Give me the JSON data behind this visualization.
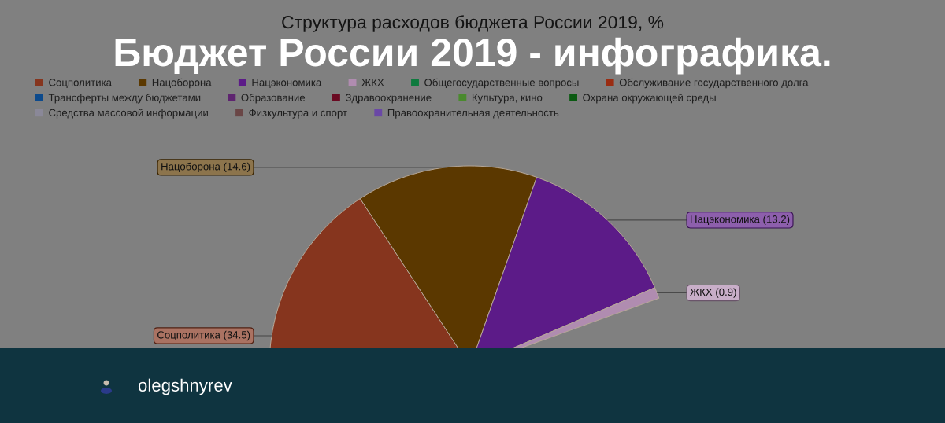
{
  "chart_data": {
    "type": "pie",
    "title": "Структура расходов бюджета России 2019, %",
    "annotations": [
      "Бюджет России 2019 - инфографика.",
      "olegshnyrev"
    ],
    "categories": [
      "Соцполитика",
      "Нацоборона",
      "Нацэкономика",
      "ЖКХ",
      "Общегосударственные вопросы",
      "Обслуживание государственного долга",
      "Трансферты между бюджетами",
      "Образование",
      "Здравоохранение",
      "Культура, кино",
      "Охрана окружающей среды",
      "Средства массовой информации",
      "Физкультура и спорт",
      "Правоохранительная деятельность"
    ],
    "values": [
      34.5,
      14.6,
      13.2,
      0.9,
      null,
      null,
      null,
      null,
      null,
      null,
      null,
      null,
      null,
      null
    ],
    "value_labels": [
      "(34.5)",
      "(14.6)",
      "(13.2)",
      "(0.9)",
      null,
      null,
      null,
      null,
      null,
      null,
      null,
      null,
      null,
      null
    ],
    "colors": [
      "#86351e",
      "#5b3800",
      "#5c1b88",
      "#b08cb0",
      "#0e7a3e",
      "#9a2c12",
      "#0d4a8c",
      "#5e2470",
      "#6a0a22",
      "#4a8a2e",
      "#0b5a12",
      "#8a8898",
      "#6a4646",
      "#6a48a6"
    ],
    "legend": "top"
  }
}
